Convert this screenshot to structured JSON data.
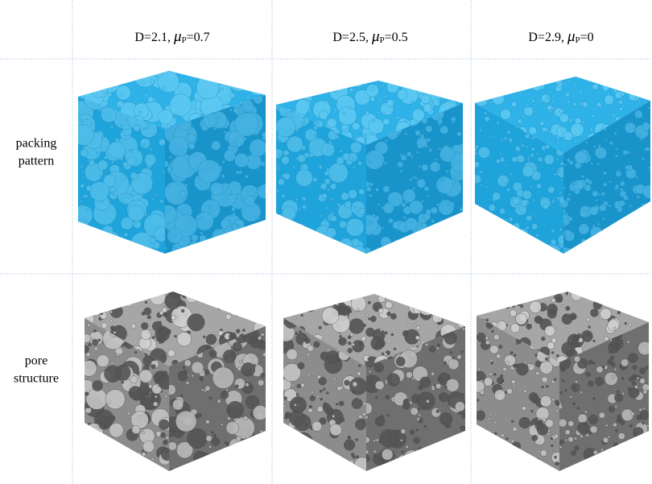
{
  "columns": [
    {
      "label": "D=2.1,",
      "symbol": "μ",
      "sub": "P",
      "rest": "=0.7"
    },
    {
      "label": "D=2.5,",
      "symbol": "μ",
      "sub": "P",
      "rest": "=0.5"
    },
    {
      "label": "D=2.9,",
      "symbol": "μ",
      "sub": "P",
      "rest": "=0"
    }
  ],
  "rows": [
    {
      "lines": [
        "packing",
        "pattern"
      ]
    },
    {
      "lines": [
        "pore",
        "structure"
      ]
    }
  ]
}
